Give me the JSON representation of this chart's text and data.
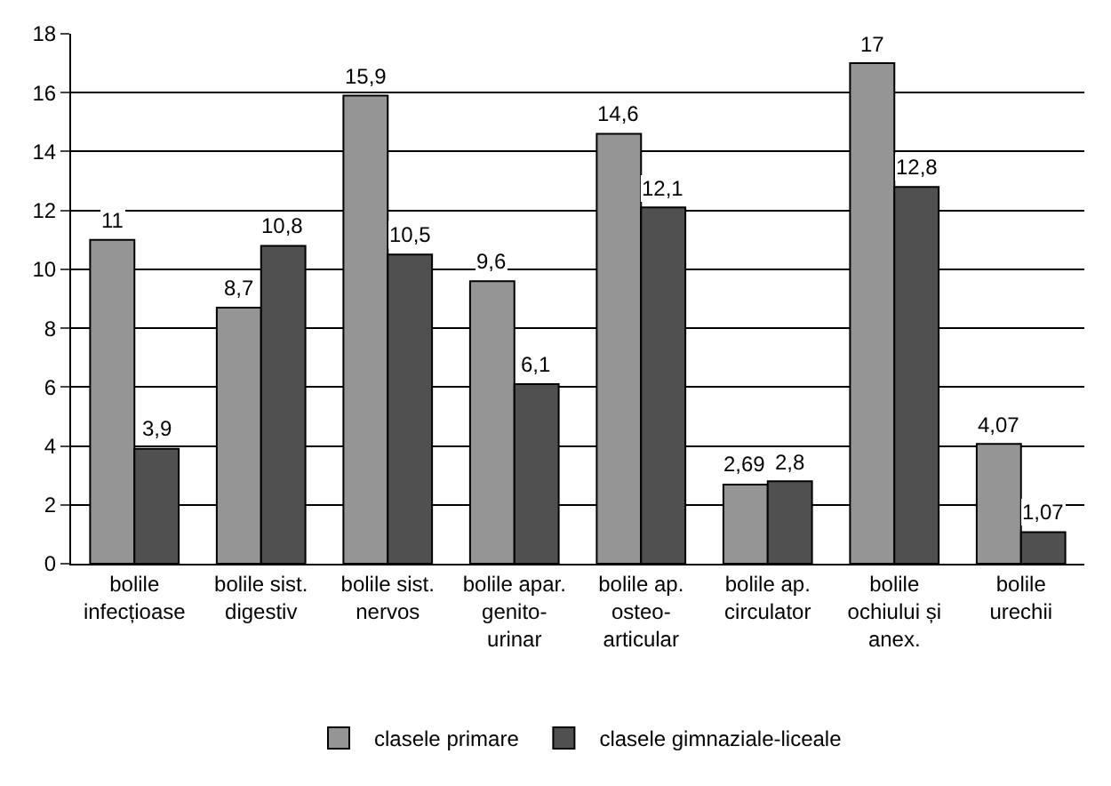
{
  "chart_data": {
    "type": "bar",
    "categories": [
      "bolile\ninfecțioase",
      "bolile sist.\ndigestiv",
      "bolile sist.\nnervos",
      "bolile apar.\ngenito-\nurinar",
      "bolile ap.\nosteo-\narticular",
      "bolile ap.\ncirculator",
      "bolile\nochiului și\nanex.",
      "bolile\nurechii"
    ],
    "series": [
      {
        "name": "clasele primare",
        "color": "#959595",
        "values": [
          11,
          8.7,
          15.9,
          9.6,
          14.6,
          2.69,
          17,
          4.07
        ],
        "value_labels": [
          "11",
          "8,7",
          "15,9",
          "9,6",
          "14,6",
          "2,69",
          "17",
          "4,07"
        ]
      },
      {
        "name": "clasele gimnaziale-liceale",
        "color": "#505050",
        "values": [
          3.9,
          10.8,
          10.5,
          6.1,
          12.1,
          2.8,
          12.8,
          1.07
        ],
        "value_labels": [
          "3,9",
          "10,8",
          "10,5",
          "6,1",
          "12,1",
          "2,8",
          "12,8",
          "1,07"
        ]
      }
    ],
    "ylim": [
      0,
      18
    ],
    "yticks": [
      0,
      2,
      4,
      6,
      8,
      10,
      12,
      14,
      16,
      18
    ],
    "grid": "y",
    "legend": "bottom"
  }
}
